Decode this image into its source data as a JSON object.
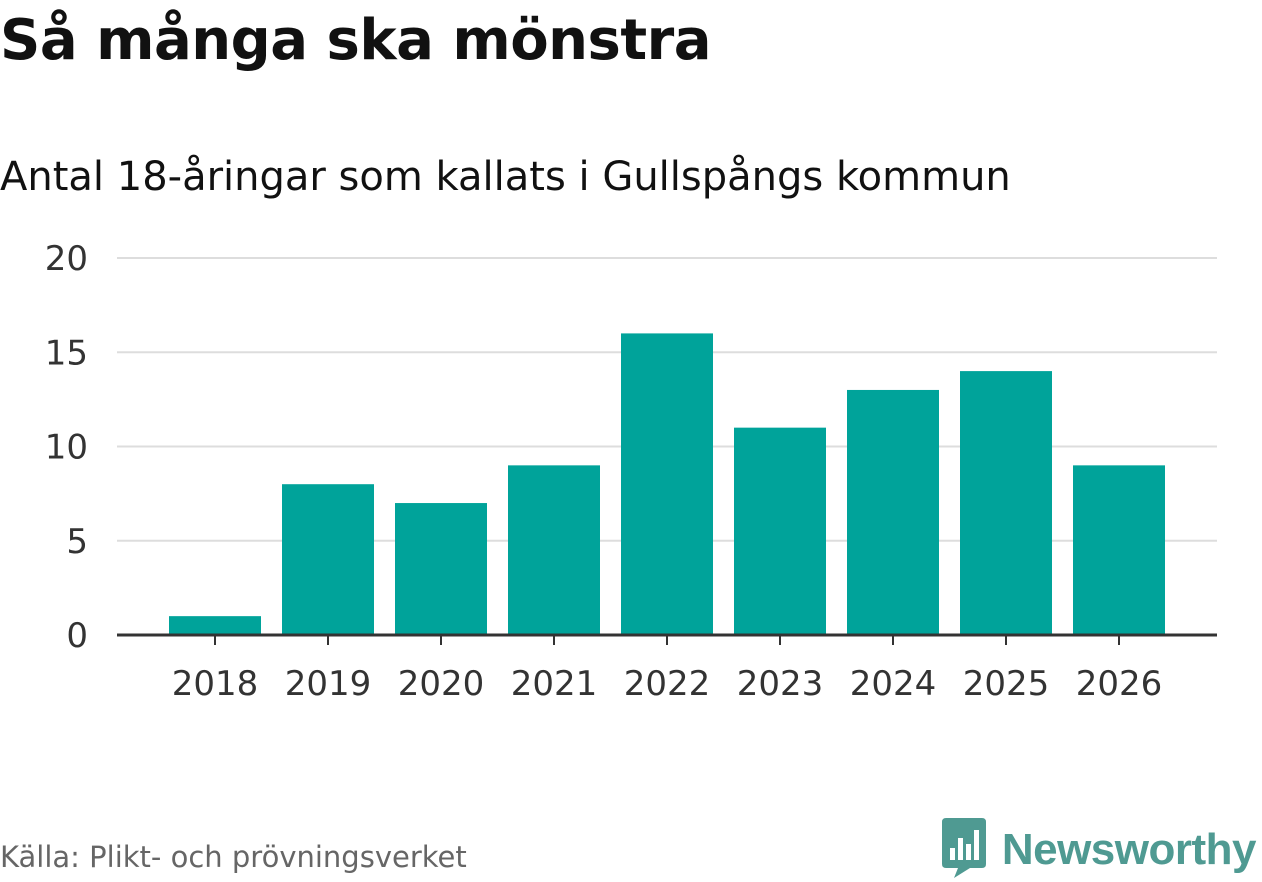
{
  "title": "Så många ska mönstra",
  "subtitle": "Antal 18-åringar som kallats i Gullspångs kommun",
  "source": "Källa: Plikt- och prövningsverket",
  "brand": {
    "name": "Newsworthy",
    "icon": "newsworthy-logo-icon",
    "color": "#4f9a92"
  },
  "colors": {
    "bar": "#00a39a",
    "grid": "#dddddd",
    "axis": "#333333"
  },
  "chart_data": {
    "type": "bar",
    "categories": [
      "2018",
      "2019",
      "2020",
      "2021",
      "2022",
      "2023",
      "2024",
      "2025",
      "2026"
    ],
    "values": [
      1,
      8,
      7,
      9,
      16,
      11,
      13,
      14,
      9
    ],
    "yticks": [
      0,
      5,
      10,
      15,
      20
    ],
    "ylim": [
      0,
      20
    ],
    "grid": true,
    "legend": "none"
  }
}
